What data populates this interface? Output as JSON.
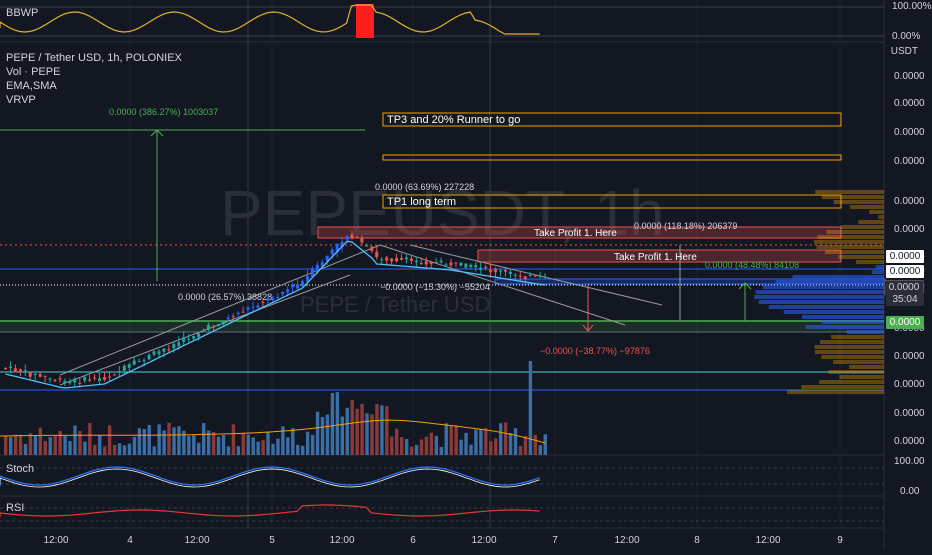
{
  "header": {
    "symbol_title": "PEPE / Tether USD, 1h, POLONIEX",
    "indicators": [
      "Vol · PEPE",
      "EMA,SMA",
      "VRVP"
    ],
    "watermark_main": "PEPEUSDT, 1h",
    "watermark_sub": "PEPE / Tether USD"
  },
  "panels": {
    "bbwp_label": "BBWP",
    "stoch_label": "Stoch",
    "rsi_label": "RSI"
  },
  "price_axis": {
    "unit": "USDT",
    "ticks": [
      "0.0000",
      "0.0000",
      "0.0000",
      "0.0000",
      "0.0000",
      "0.0000",
      "0.0000",
      "0.0000",
      "0.0000",
      "0.0000",
      "0.0000",
      "0.0000",
      "0.0000",
      "0.0000"
    ],
    "bbwp_ticks": [
      "100.00%",
      "0.00%"
    ],
    "stoch_ticks": [
      "100.00",
      "0.00"
    ],
    "current_tags": [
      "0.0000",
      "0.0000",
      "0.0000",
      "35:04",
      "0.0000"
    ]
  },
  "time_axis": {
    "ticks": [
      "12:00",
      "4",
      "12:00",
      "5",
      "12:00",
      "6",
      "12:00",
      "7",
      "12:00",
      "8",
      "12:00",
      "9"
    ]
  },
  "annotations": {
    "measure_top": "0.0000 (386.27%) 1003037",
    "tp3_label": "TP3 and 20% Runner to go",
    "measure_mid": "0.0000 (63.69%) 227228",
    "tp1_label": "TP1 long term",
    "take_profit_1": "Take Profit 1.      Here",
    "measure_tp_right": "0.0000 (118.18%) 206379",
    "take_profit_2": "Take Profit 1.      Here",
    "measure_small_right": "0.0000 (48.48%) 84108",
    "measure_neg_mid": "−0.0000 (−15.30%) −55204",
    "measure_left": "0.0000 (26.57%) 38828",
    "measure_neg_red": "−0.0000 (−38.77%) −97876"
  },
  "colors": {
    "background": "#131722",
    "up": "#26a69a",
    "down": "#ef5350",
    "blue_candle": "#2962ff",
    "ema": "#4fc3f7",
    "sma": "#b0bec5",
    "orange": "#f59f00",
    "green": "#4caf50",
    "rsi": "#e53935",
    "stoch_k": "#2979ff",
    "stoch_d": "#ffffff"
  }
}
